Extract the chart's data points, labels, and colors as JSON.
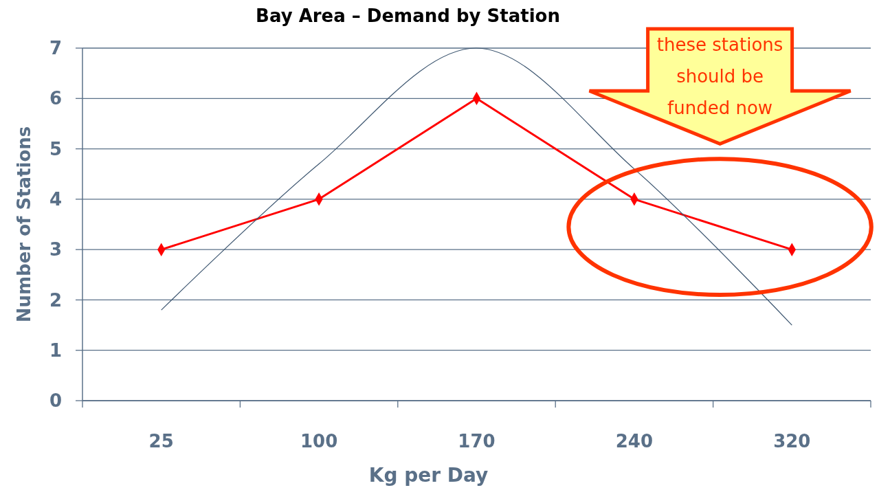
{
  "chart_data": {
    "type": "line",
    "title": "Bay Area – Demand by Station",
    "xlabel": "Kg per Day",
    "ylabel": "Number of Stations",
    "categories": [
      "25",
      "100",
      "170",
      "240",
      "320"
    ],
    "series": [
      {
        "color": "#ff0000",
        "values": [
          3,
          4,
          6,
          4,
          3
        ],
        "marker": "diamond"
      },
      {
        "color": "#3d5670",
        "values": [
          1.8,
          4.7,
          7,
          4.6,
          1.5
        ],
        "marker": "none"
      }
    ],
    "ylim": [
      0,
      7
    ],
    "yticks": [
      0,
      1,
      2,
      3,
      4,
      5,
      6,
      7
    ],
    "grid": "y",
    "line_style": "solid",
    "annotations": [
      "these stations should be funded now"
    ]
  }
}
